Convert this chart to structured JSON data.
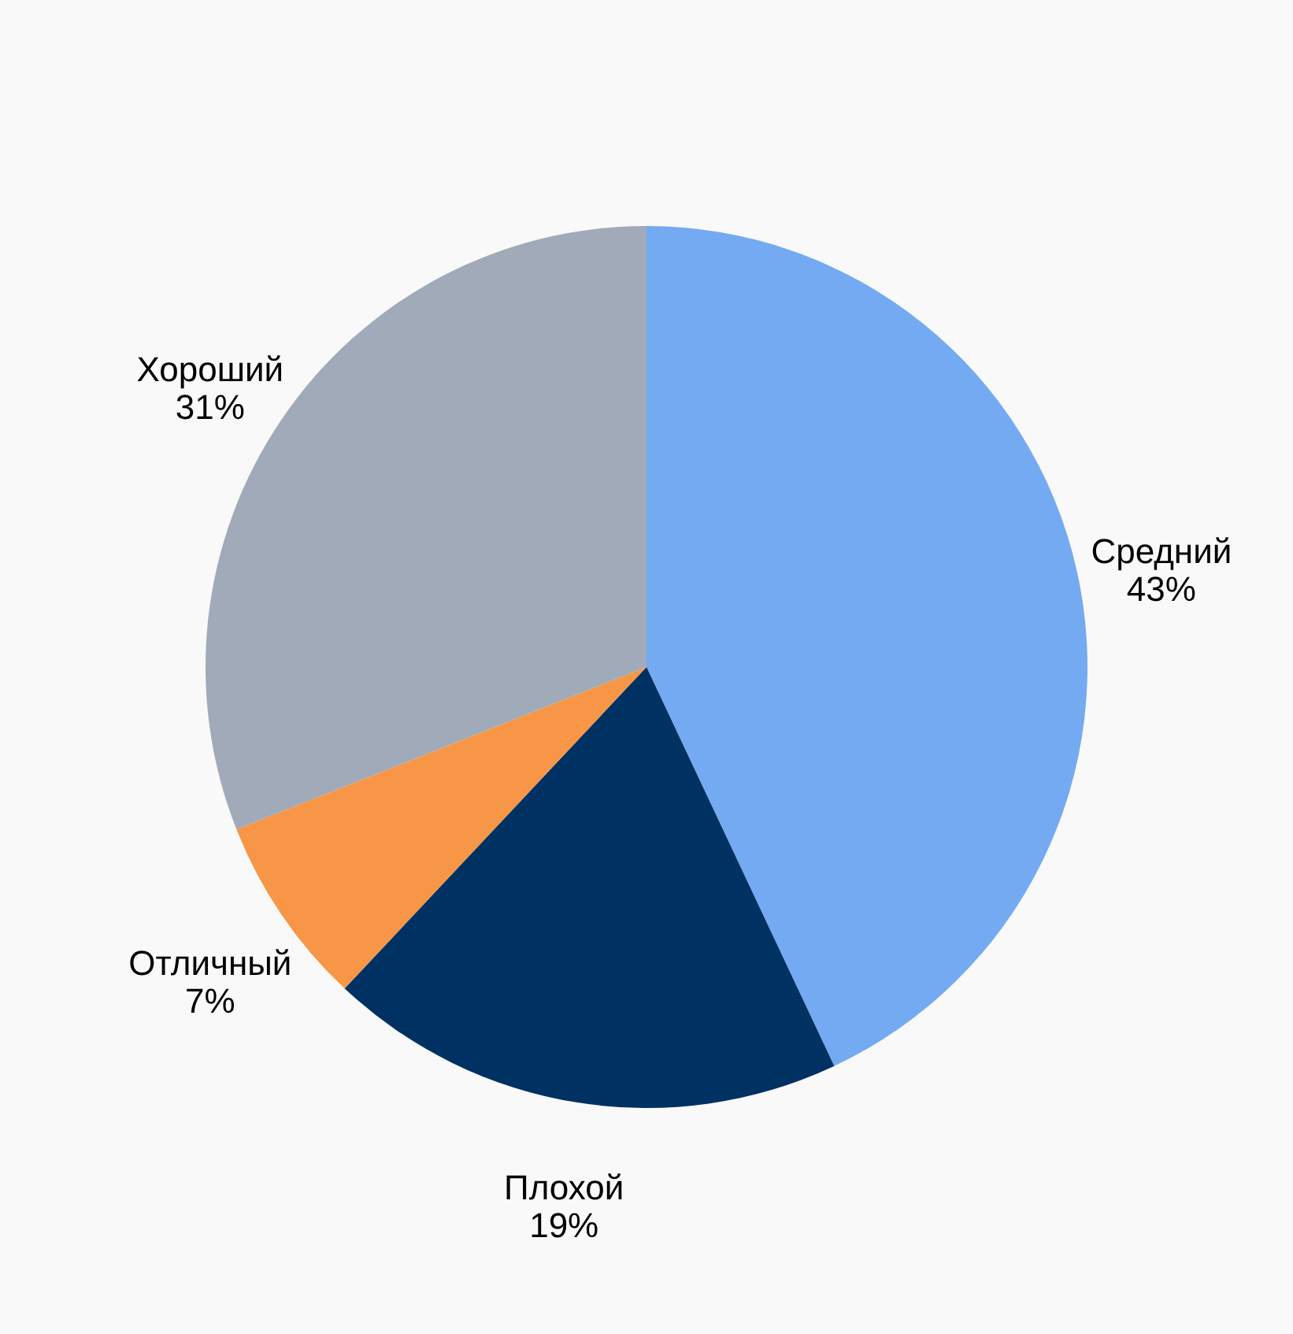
{
  "chart_data": {
    "type": "pie",
    "categories": [
      "Средний",
      "Плохой",
      "Отличный",
      "Хороший"
    ],
    "values": [
      43,
      19,
      7,
      31
    ],
    "colors": [
      "#74aaf2",
      "#003163",
      "#f79646",
      "#a0aab8"
    ],
    "value_labels": [
      "43%",
      "19%",
      "7%",
      "31%"
    ],
    "legend": false
  }
}
